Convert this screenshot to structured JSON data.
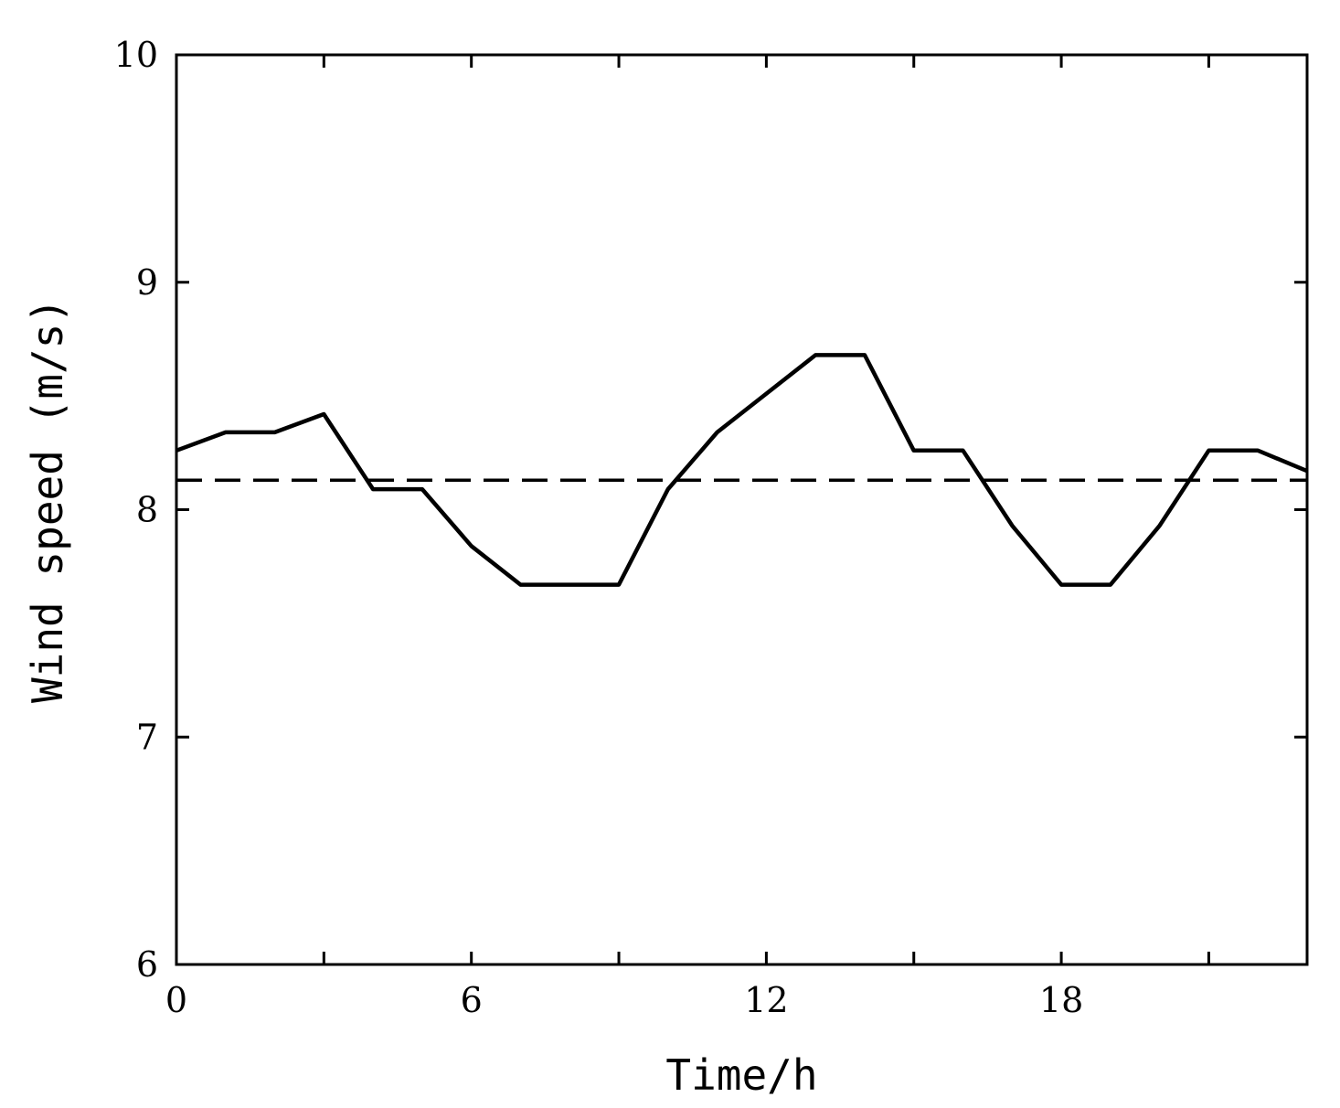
{
  "chart_data": {
    "type": "line",
    "xlabel": "Time/h",
    "ylabel": "Wind speed (m/s)",
    "xlim": [
      0,
      23
    ],
    "ylim": [
      6,
      10
    ],
    "x_ticks": [
      0,
      6,
      12,
      18
    ],
    "y_ticks": [
      6,
      7,
      8,
      9,
      10
    ],
    "grid": false,
    "series": [
      {
        "style": "solid",
        "x": [
          0,
          1,
          2,
          3,
          4,
          5,
          6,
          7,
          8,
          9,
          10,
          11,
          12,
          13,
          14,
          15,
          16,
          17,
          18,
          19,
          20,
          21,
          22,
          23
        ],
        "y": [
          8.26,
          8.34,
          8.34,
          8.42,
          8.09,
          8.09,
          7.84,
          7.67,
          7.67,
          7.67,
          8.09,
          8.34,
          8.51,
          8.68,
          8.68,
          8.26,
          8.26,
          7.93,
          7.67,
          7.67,
          7.93,
          8.26,
          8.26,
          8.17
        ]
      },
      {
        "style": "dashed",
        "x": [
          0,
          23
        ],
        "y": [
          8.13,
          8.13
        ]
      }
    ]
  }
}
